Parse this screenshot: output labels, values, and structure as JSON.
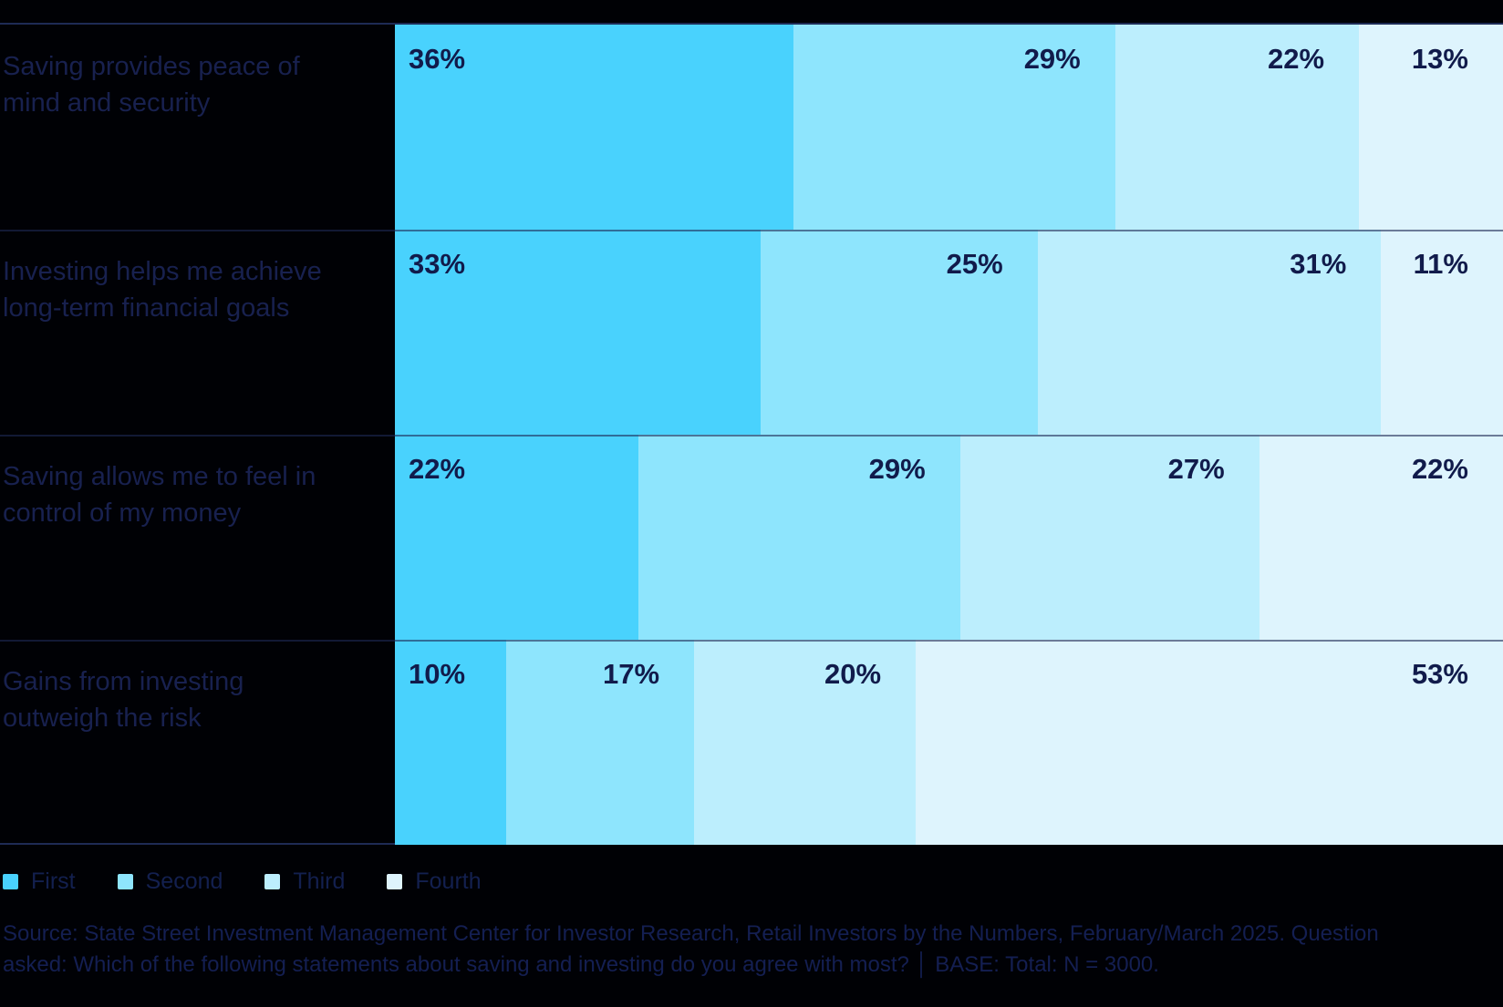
{
  "chart_data": {
    "type": "bar",
    "variant": "horizontal-stacked-100",
    "categories": [
      "Saving provides peace of mind and security",
      "Investing helps me achieve long-term financial goals",
      "Saving allows me to feel in control of my money",
      "Gains from investing outweigh the risk"
    ],
    "series": [
      {
        "name": "First",
        "color": "#49d2fd",
        "values": [
          36,
          33,
          22,
          10
        ]
      },
      {
        "name": "Second",
        "color": "#8ee5fd",
        "values": [
          29,
          25,
          29,
          17
        ]
      },
      {
        "name": "Third",
        "color": "#bceefd",
        "values": [
          22,
          31,
          27,
          20
        ]
      },
      {
        "name": "Fourth",
        "color": "#def4fd",
        "values": [
          13,
          11,
          22,
          53
        ]
      }
    ],
    "value_suffix": "%",
    "xlim": [
      0,
      100
    ],
    "grid": false,
    "legend": {
      "position": "bottom-left",
      "entries": [
        "First",
        "Second",
        "Third",
        "Fourth"
      ]
    }
  },
  "footer": {
    "source_line1": "Source: State Street Investment Management Center for Investor Research, Retail Investors by the Numbers, February/March 2025. Question",
    "source_line2": "asked: Which of the following statements about saving and investing do you agree with most? │ BASE: Total: N = 3000."
  },
  "colors": {
    "background": "#000105",
    "row_label_text": "#18214f",
    "value_text": "#111b4b",
    "divider": "#1e2b55"
  }
}
